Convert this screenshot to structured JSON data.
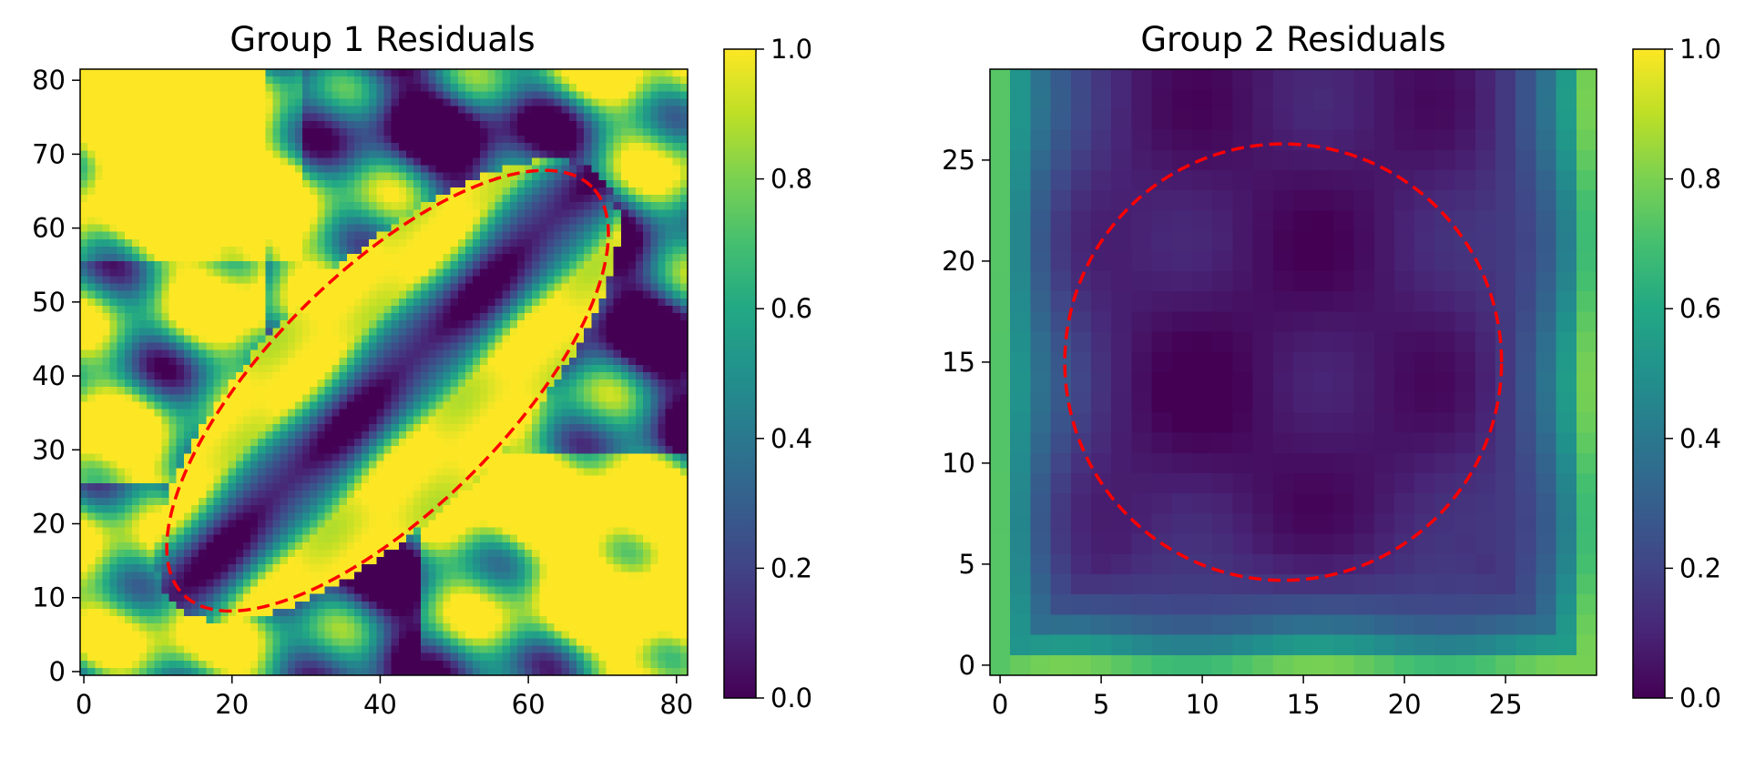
{
  "chart_data": [
    {
      "type": "heatmap",
      "title": "Group 1 Residuals",
      "colormap": "viridis",
      "grid": false,
      "xlim": [
        -0.5,
        81.5
      ],
      "ylim": [
        -0.5,
        81.5
      ],
      "x_ticks": [
        0,
        20,
        40,
        60,
        80
      ],
      "y_ticks": [
        0,
        10,
        20,
        30,
        40,
        50,
        60,
        70,
        80
      ],
      "colorbar": {
        "range": [
          0.0,
          1.0
        ],
        "ticks": [
          "0.0",
          "0.2",
          "0.4",
          "0.6",
          "0.8",
          "1.0"
        ]
      },
      "overlay": {
        "shape": "ellipse",
        "style": "dashed",
        "color": "#ff0000",
        "center": [
          41,
          38
        ],
        "semi_major": 39,
        "semi_minor": 16,
        "angle_deg": 45
      },
      "field_description": "residual values in [0,1]; high (yellow) regions on both sides of a low diagonal band inside the ellipse"
    },
    {
      "type": "heatmap",
      "title": "Group 2 Residuals",
      "colormap": "viridis",
      "grid": false,
      "xlim": [
        -0.5,
        29.5
      ],
      "ylim": [
        -0.5,
        29.5
      ],
      "x_ticks": [
        0,
        5,
        10,
        15,
        20,
        25
      ],
      "y_ticks": [
        0,
        5,
        10,
        15,
        20,
        25
      ],
      "colorbar": {
        "range": [
          0.0,
          1.0
        ],
        "ticks": [
          "0.0",
          "0.2",
          "0.4",
          "0.6",
          "0.8",
          "1.0"
        ]
      },
      "overlay": {
        "shape": "ellipse",
        "style": "dashed",
        "color": "#ff0000",
        "center": [
          14,
          15
        ],
        "semi_major": 10.8,
        "semi_minor": 10.8,
        "angle_deg": 0
      },
      "field_description": "residual values mostly near 0.05-0.2, rising toward 0.7-0.9 at the left, bottom and right edges"
    }
  ]
}
